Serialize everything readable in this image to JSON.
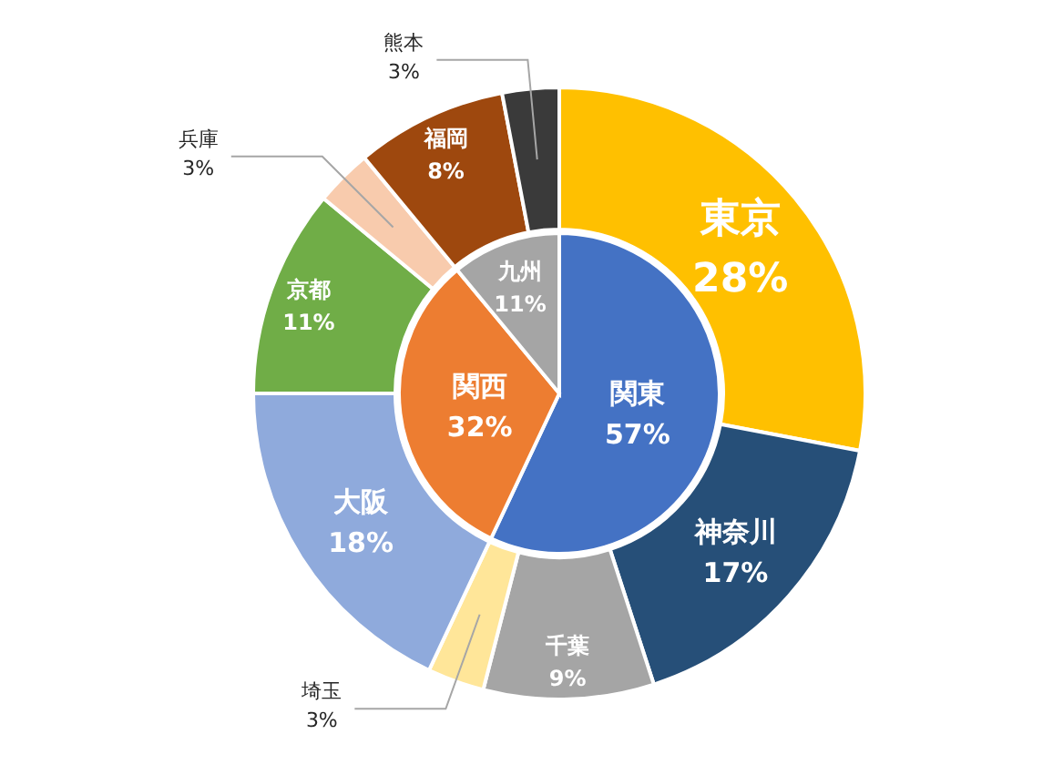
{
  "chart_data": [
    {
      "type": "pie",
      "categories": [
        "関東",
        "関西",
        "九州"
      ],
      "values": [
        57,
        32,
        11
      ],
      "value_labels": [
        "57%",
        "32%",
        "11%"
      ],
      "colors": [
        "#4472c4",
        "#ed7d31",
        "#a5a5a5"
      ]
    },
    {
      "type": "donut",
      "categories": [
        "東京",
        "神奈川",
        "千葉",
        "埼玉",
        "大阪",
        "京都",
        "兵庫",
        "福岡",
        "熊本"
      ],
      "values": [
        28,
        17,
        9,
        3,
        18,
        11,
        3,
        8,
        3
      ],
      "value_labels": [
        "28%",
        "17%",
        "9%",
        "3%",
        "18%",
        "11%",
        "3%",
        "8%",
        "3%"
      ],
      "colors": [
        "#ffc000",
        "#264f78",
        "#a5a5a5",
        "#ffe699",
        "#8faadc",
        "#70ad47",
        "#f8cbad",
        "#9e480e",
        "#3a3a3a"
      ]
    }
  ]
}
